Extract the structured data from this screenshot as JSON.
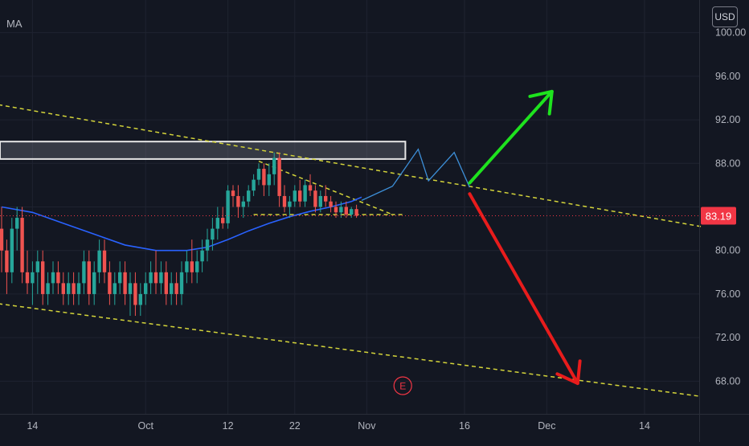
{
  "indicator": {
    "label": "MA"
  },
  "currency": {
    "label": "USD"
  },
  "price_axis": {
    "ticks": [
      "100.00",
      "96.00",
      "92.00",
      "88.00",
      "80.00",
      "76.00",
      "72.00",
      "68.00"
    ],
    "last_price": "83.19"
  },
  "time_axis": {
    "ticks": [
      "14",
      "Oct",
      "12",
      "22",
      "Nov",
      "16",
      "Dec",
      "14"
    ]
  },
  "event_marker": {
    "label": "E"
  },
  "colors": {
    "background": "#131722",
    "grid": "#1f2330",
    "bull": "#26a69a",
    "bear": "#ef5350",
    "ma": "#2962ff",
    "trendline": "#d4d43a",
    "projection": "#3d8fd8",
    "up_arrow": "#1ee31e",
    "down_arrow": "#e81c1c",
    "last_price_bg": "#f23645"
  },
  "chart_data": {
    "type": "candlestick",
    "ylim": [
      65,
      103
    ],
    "last_price": 83.19,
    "price_ticks": [
      100,
      96,
      92,
      88,
      80,
      76,
      72,
      68
    ],
    "resistance_zone": [
      88.4,
      90.0
    ],
    "candles": [
      [
        82,
        84,
        78,
        80
      ],
      [
        80,
        81,
        76,
        78
      ],
      [
        78,
        83,
        77,
        82
      ],
      [
        82,
        84,
        80,
        83
      ],
      [
        83,
        84,
        77,
        78
      ],
      [
        78,
        80,
        76,
        77
      ],
      [
        77,
        79,
        75,
        78
      ],
      [
        78,
        80,
        76,
        79
      ],
      [
        79,
        80,
        75,
        76
      ],
      [
        76,
        78,
        75,
        77
      ],
      [
        77,
        79,
        76,
        78
      ],
      [
        78,
        79,
        76,
        77
      ],
      [
        77,
        78,
        75,
        76
      ],
      [
        76,
        78,
        75,
        77
      ],
      [
        77,
        78,
        75,
        76
      ],
      [
        76,
        78,
        75,
        77
      ],
      [
        77,
        80,
        76,
        79
      ],
      [
        79,
        80,
        75,
        76
      ],
      [
        76,
        79,
        75,
        78
      ],
      [
        78,
        81,
        77,
        80
      ],
      [
        80,
        81,
        77,
        78
      ],
      [
        78,
        79,
        75,
        76
      ],
      [
        76,
        78,
        75,
        77
      ],
      [
        77,
        79,
        76,
        78
      ],
      [
        78,
        79,
        75,
        76
      ],
      [
        76,
        78,
        74,
        77
      ],
      [
        77,
        78,
        74,
        75
      ],
      [
        75,
        77,
        74,
        76
      ],
      [
        76,
        78,
        75,
        77
      ],
      [
        77,
        79,
        76,
        78
      ],
      [
        78,
        80,
        76,
        77
      ],
      [
        77,
        79,
        76,
        78
      ],
      [
        78,
        79,
        75,
        76
      ],
      [
        76,
        78,
        75,
        77
      ],
      [
        77,
        78,
        75,
        76
      ],
      [
        76,
        79,
        75,
        78
      ],
      [
        78,
        80,
        77,
        79
      ],
      [
        79,
        81,
        77,
        78
      ],
      [
        78,
        80,
        77,
        79
      ],
      [
        79,
        81,
        78,
        80
      ],
      [
        80,
        82,
        79,
        81
      ],
      [
        81,
        83,
        80,
        82
      ],
      [
        82,
        84,
        81,
        83
      ],
      [
        83,
        84,
        82,
        82.5
      ],
      [
        82.5,
        86,
        82,
        85.5
      ],
      [
        85.5,
        86,
        84,
        85
      ],
      [
        85,
        86,
        83,
        84
      ],
      [
        84,
        85,
        83,
        84.5
      ],
      [
        84.5,
        86,
        84,
        85.5
      ],
      [
        85.5,
        87,
        85,
        86.5
      ],
      [
        86.5,
        88,
        86,
        87.5
      ],
      [
        87.5,
        88,
        85,
        86
      ],
      [
        86,
        88,
        85,
        87
      ],
      [
        87,
        89,
        86,
        88.5
      ],
      [
        88.5,
        89,
        84,
        85
      ],
      [
        85,
        86,
        83.5,
        84
      ],
      [
        84,
        85,
        83,
        84.5
      ],
      [
        84.5,
        86,
        84,
        85.5
      ],
      [
        85.5,
        86.5,
        84,
        84.5
      ],
      [
        84.5,
        86.5,
        84,
        86
      ],
      [
        86,
        87,
        85,
        85.5
      ],
      [
        85.5,
        86,
        83.5,
        84
      ],
      [
        84,
        85.5,
        83.5,
        85
      ],
      [
        85,
        86,
        84,
        84.5
      ],
      [
        84.5,
        85,
        83.5,
        84
      ],
      [
        84,
        84.5,
        83,
        83.5
      ],
      [
        83.5,
        84.5,
        83,
        84
      ],
      [
        84,
        84.5,
        83,
        83.3
      ],
      [
        83.3,
        84,
        83,
        83.8
      ],
      [
        83.8,
        84.2,
        83,
        83.19
      ]
    ],
    "ma": [
      [
        0,
        84.0
      ],
      [
        6,
        83.5
      ],
      [
        12,
        82.5
      ],
      [
        18,
        81.5
      ],
      [
        24,
        80.5
      ],
      [
        30,
        80.0
      ],
      [
        36,
        80.0
      ],
      [
        40,
        80.3
      ],
      [
        44,
        81.0
      ],
      [
        48,
        81.8
      ],
      [
        52,
        82.5
      ],
      [
        56,
        83.1
      ],
      [
        60,
        83.6
      ],
      [
        64,
        84.0
      ],
      [
        68,
        84.5
      ],
      [
        70,
        84.9
      ]
    ],
    "trendlines": [
      [
        [
          -2,
          93.5
        ],
        [
          136,
          82.2
        ]
      ],
      [
        [
          -2,
          75.2
        ],
        [
          136,
          66.6
        ]
      ],
      [
        [
          50,
          88.2
        ],
        [
          76,
          83.3
        ]
      ],
      [
        [
          49,
          83.3
        ],
        [
          78,
          83.3
        ]
      ]
    ],
    "projection": [
      [
        70,
        84.6
      ],
      [
        76,
        85.9
      ],
      [
        81,
        89.3
      ],
      [
        83,
        86.4
      ],
      [
        88,
        89.0
      ],
      [
        91,
        85.8
      ]
    ],
    "up_arrow": [
      [
        91,
        86.2
      ],
      [
        107,
        94.6
      ]
    ],
    "down_arrow": [
      [
        91,
        85.2
      ],
      [
        112,
        67.8
      ]
    ],
    "event_bar": 78
  }
}
